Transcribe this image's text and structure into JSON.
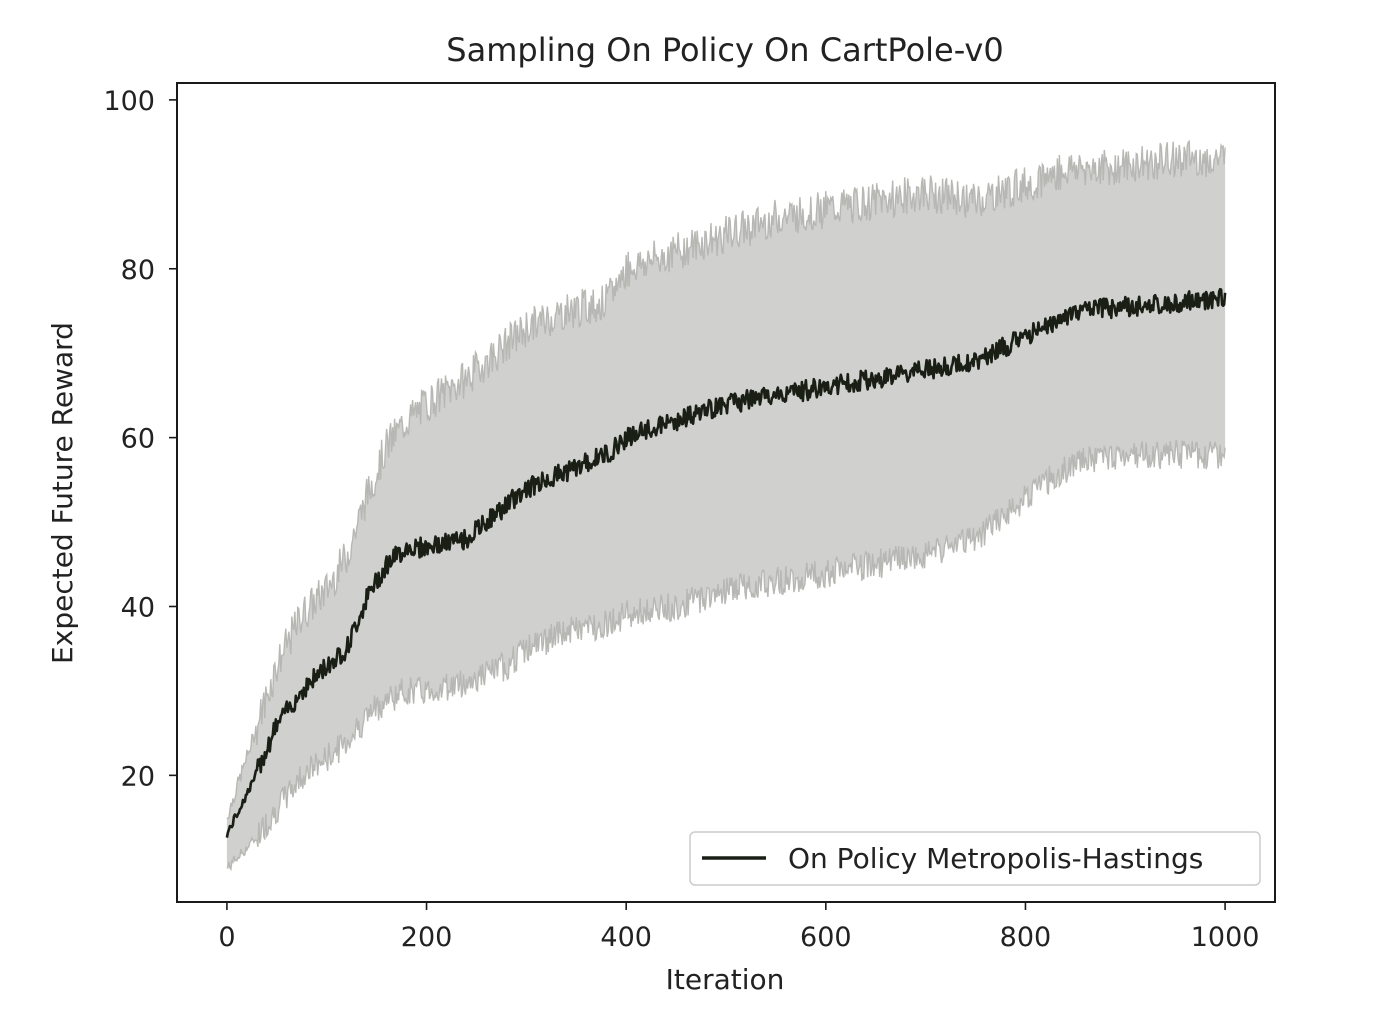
{
  "chart_data": {
    "type": "line",
    "title": "Sampling On Policy On CartPole-v0",
    "xlabel": "Iteration",
    "ylabel": "Expected Future Reward",
    "xlim": [
      -50,
      1050
    ],
    "ylim": [
      5,
      102
    ],
    "x_ticks": [
      0,
      200,
      400,
      600,
      800,
      1000
    ],
    "y_ticks": [
      20,
      40,
      60,
      80,
      100
    ],
    "legend": {
      "placement": "lower-right",
      "entries": [
        "On Policy Metropolis-Hastings"
      ]
    },
    "grid": false,
    "series": [
      {
        "name": "On Policy Metropolis-Hastings",
        "color": "#1a1f16",
        "x": [
          0,
          25,
          50,
          75,
          100,
          120,
          140,
          160,
          180,
          200,
          240,
          280,
          300,
          340,
          380,
          400,
          450,
          500,
          550,
          600,
          650,
          700,
          750,
          800,
          850,
          900,
          950,
          1000
        ],
        "mean": [
          13,
          19,
          26,
          30,
          33,
          35,
          41,
          45,
          47,
          47,
          48,
          52,
          54,
          56,
          58,
          60,
          62,
          64,
          65,
          66,
          67,
          68,
          69,
          72,
          75,
          75.5,
          76,
          76.5
        ],
        "upper": [
          15,
          24,
          33,
          39,
          42,
          46,
          53,
          59,
          62,
          64,
          67,
          71,
          73,
          75,
          76,
          80,
          82,
          84,
          86,
          87,
          88,
          89,
          88,
          90,
          92,
          92,
          93,
          93
        ],
        "lower": [
          9,
          12,
          16,
          20,
          22,
          24,
          27,
          29,
          30,
          30,
          31,
          33,
          35,
          37,
          38,
          39,
          40,
          42,
          43,
          44,
          45,
          46,
          48,
          53,
          57,
          58,
          58,
          58
        ]
      }
    ]
  },
  "colors": {
    "band_fill": "#d0d0ce",
    "band_edge": "#b7b7b3",
    "mean_line": "#1a1f16",
    "frame": "#1a1a1a"
  }
}
